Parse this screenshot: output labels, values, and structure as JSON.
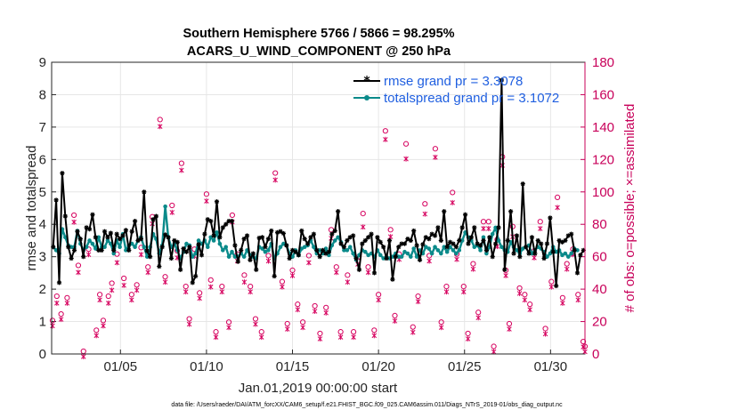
{
  "chart_data": {
    "type": "line",
    "title": "Southern Hemisphere 5766 / 5866 = 98.295%",
    "subtitle": "ACARS_U_WIND_COMPONENT @ 250 hPa",
    "xlabel": "Jan.01,2019 00:00:00 start",
    "ylabel": "rmse and totalspread",
    "ylabel_right": "# of obs: o=possible; ×=assimilated",
    "x_ticks": [
      "01/05",
      "01/10",
      "01/15",
      "01/20",
      "01/25",
      "01/30"
    ],
    "x_tick_days": [
      5,
      10,
      15,
      20,
      25,
      30
    ],
    "xlim": [
      1,
      32
    ],
    "ylim": [
      0,
      9
    ],
    "ylim_right": [
      0,
      180
    ],
    "y_ticks": [
      "0",
      "1",
      "2",
      "3",
      "4",
      "5",
      "6",
      "7",
      "8",
      "9"
    ],
    "y_ticks_right": [
      "0",
      "20",
      "40",
      "60",
      "80",
      "100",
      "120",
      "140",
      "160",
      "180"
    ],
    "grid": true,
    "legend_position": "top-right",
    "series": [
      {
        "name": "rmse grand pr = 3.3078",
        "color": "#000000",
        "marker": "star",
        "values": [
          3.3,
          4.75,
          2.2,
          5.58,
          4.25,
          3.3,
          2.95,
          3.2,
          3.78,
          3.55,
          3.0,
          3.9,
          3.85,
          4.3,
          3.6,
          3.2,
          3.2,
          3.78,
          3.6,
          3.73,
          3.2,
          3.7,
          3.55,
          3.65,
          3.82,
          3.2,
          3.78,
          4.1,
          3.5,
          3.55,
          5.0,
          3.18,
          3.0,
          4.15,
          4.25,
          2.7,
          3.3,
          3.68,
          3.6,
          2.95,
          3.5,
          3.45,
          2.6,
          3.25,
          3.15,
          3.3,
          2.2,
          2.4,
          3.38,
          3.05,
          3.7,
          4.15,
          4.1,
          3.65,
          4.7,
          3.6,
          3.9,
          4.0,
          4.1,
          4.1,
          3.35,
          2.85,
          3.2,
          3.55,
          3.65,
          2.9,
          3.1,
          2.6,
          3.58,
          3.6,
          3.3,
          3.55,
          3.8,
          2.4,
          3.75,
          3.78,
          3.72,
          3.35,
          2.95,
          3.2,
          3.15,
          3.05,
          3.8,
          3.55,
          3.4,
          3.6,
          3.7,
          3.2,
          3.0,
          3.2,
          3.1,
          3.15,
          3.7,
          3.8,
          4.4,
          3.4,
          3.3,
          3.5,
          3.6,
          3.65,
          2.95,
          2.6,
          3.4,
          3.5,
          3.6,
          3.7,
          2.5,
          3.6,
          3.45,
          3.3,
          2.95,
          3.5,
          2.3,
          3.0,
          3.3,
          3.4,
          3.4,
          3.55,
          3.5,
          3.8,
          3.35,
          2.9,
          3.38,
          3.6,
          3.55,
          3.7,
          3.65,
          3.9,
          3.5,
          4.4,
          3.3,
          3.45,
          3.4,
          3.3,
          3.5,
          3.9,
          4.3,
          3.4,
          3.6,
          3.9,
          3.4,
          3.35,
          3.5,
          3.2,
          3.6,
          3.0,
          3.4,
          3.9,
          8.45,
          2.6,
          3.5,
          4.4,
          3.1,
          3.65,
          3.0,
          5.25,
          3.3,
          3.1,
          3.6,
          3.1,
          3.5,
          3.4,
          2.95,
          3.4,
          4.2,
          3.15,
          2.1,
          3.5,
          3.45,
          3.5,
          3.65,
          3.7,
          3.2,
          2.5,
          3.05,
          3.2
        ]
      },
      {
        "name": "totalspread grand pr = 3.1072",
        "color": "#0a8a8a",
        "marker": "circle",
        "values": [
          3.3,
          3.2,
          3.1,
          3.85,
          3.6,
          3.35,
          3.3,
          3.3,
          3.8,
          3.4,
          3.2,
          3.3,
          3.5,
          3.4,
          3.25,
          3.6,
          3.3,
          3.3,
          3.5,
          3.4,
          3.1,
          3.5,
          3.3,
          3.7,
          3.2,
          3.35,
          3.4,
          3.3,
          3.5,
          3.6,
          3.3,
          3.0,
          3.3,
          3.7,
          3.55,
          3.1,
          3.35,
          4.55,
          3.6,
          3.3,
          3.4,
          3.2,
          2.95,
          3.15,
          3.4,
          3.35,
          3.0,
          3.1,
          3.5,
          3.4,
          3.5,
          3.3,
          3.6,
          3.5,
          3.75,
          3.4,
          3.2,
          3.3,
          3.0,
          3.15,
          3.0,
          3.0,
          3.1,
          3.0,
          3.2,
          3.05,
          3.0,
          2.95,
          3.3,
          3.25,
          3.15,
          3.2,
          3.4,
          2.95,
          3.1,
          3.3,
          3.4,
          3.35,
          3.1,
          3.0,
          3.2,
          3.05,
          3.25,
          3.3,
          3.35,
          3.5,
          3.3,
          3.1,
          3.2,
          3.1,
          3.25,
          3.05,
          3.35,
          3.5,
          3.6,
          3.45,
          3.2,
          3.2,
          3.3,
          3.1,
          2.9,
          3.05,
          3.2,
          3.15,
          3.05,
          3.1,
          3.0,
          3.2,
          3.05,
          2.95,
          3.0,
          2.95,
          3.0,
          3.1,
          3.0,
          3.0,
          3.15,
          3.1,
          3.0,
          3.25,
          3.0,
          3.2,
          3.1,
          3.3,
          3.25,
          3.1,
          3.3,
          3.2,
          3.1,
          3.3,
          3.15,
          3.3,
          3.2,
          3.1,
          3.2,
          3.5,
          3.75,
          3.6,
          3.5,
          3.3,
          3.35,
          3.2,
          3.6,
          3.1,
          3.3,
          3.7,
          3.9,
          3.5,
          3.3,
          3.2,
          3.15,
          3.45,
          3.3,
          3.2,
          3.1,
          3.25,
          3.3,
          3.35,
          3.1,
          3.2,
          3.3,
          3.25,
          3.15,
          3.0,
          3.1,
          3.3,
          3.15,
          3.2,
          3.05,
          3.1,
          3.0,
          3.1,
          3.25,
          3.2
        ]
      }
    ],
    "obs_possible": {
      "name": "possible",
      "color": "#d6005e",
      "marker": "o",
      "points": [
        [
          1.05,
          19
        ],
        [
          1.3,
          34
        ],
        [
          1.55,
          23
        ],
        [
          1.9,
          33
        ],
        [
          2.3,
          84
        ],
        [
          2.55,
          53
        ],
        [
          2.85,
          0
        ],
        [
          3.15,
          63
        ],
        [
          3.6,
          13
        ],
        [
          3.8,
          35
        ],
        [
          4.0,
          19
        ],
        [
          4.3,
          34
        ],
        [
          4.5,
          42
        ],
        [
          4.8,
          60
        ],
        [
          5.2,
          45
        ],
        [
          5.65,
          35
        ],
        [
          5.95,
          41
        ],
        [
          6.2,
          64
        ],
        [
          6.6,
          52
        ],
        [
          6.85,
          83
        ],
        [
          7.3,
          143
        ],
        [
          7.6,
          46
        ],
        [
          8.0,
          90
        ],
        [
          8.3,
          62
        ],
        [
          8.55,
          116
        ],
        [
          8.8,
          40
        ],
        [
          9.0,
          20
        ],
        [
          9.3,
          63
        ],
        [
          9.6,
          36
        ],
        [
          10.0,
          97
        ],
        [
          10.25,
          44
        ],
        [
          10.55,
          12
        ],
        [
          10.9,
          40
        ],
        [
          11.3,
          18
        ],
        [
          11.5,
          84
        ],
        [
          11.8,
          60
        ],
        [
          12.2,
          47
        ],
        [
          12.55,
          40
        ],
        [
          12.85,
          20
        ],
        [
          13.2,
          12
        ],
        [
          13.6,
          59
        ],
        [
          14.0,
          110
        ],
        [
          14.4,
          43
        ],
        [
          14.7,
          17
        ],
        [
          15.0,
          50
        ],
        [
          15.3,
          29
        ],
        [
          15.6,
          18
        ],
        [
          15.95,
          59
        ],
        [
          16.3,
          28
        ],
        [
          16.6,
          11
        ],
        [
          16.95,
          27
        ],
        [
          17.25,
          75
        ],
        [
          17.55,
          52
        ],
        [
          17.8,
          12
        ],
        [
          18.2,
          47
        ],
        [
          18.55,
          12
        ],
        [
          18.8,
          58
        ],
        [
          19.1,
          85
        ],
        [
          19.4,
          52
        ],
        [
          19.75,
          13
        ],
        [
          20.0,
          35
        ],
        [
          20.4,
          136
        ],
        [
          20.7,
          75
        ],
        [
          20.95,
          22
        ],
        [
          21.2,
          60
        ],
        [
          21.6,
          128
        ],
        [
          22.0,
          15
        ],
        [
          22.3,
          34
        ],
        [
          22.7,
          91
        ],
        [
          22.95,
          59
        ],
        [
          23.3,
          125
        ],
        [
          23.65,
          18
        ],
        [
          23.95,
          40
        ],
        [
          24.3,
          98
        ],
        [
          24.55,
          60
        ],
        [
          24.95,
          40
        ],
        [
          25.2,
          11
        ],
        [
          25.5,
          54
        ],
        [
          25.8,
          24
        ],
        [
          26.1,
          80
        ],
        [
          26.4,
          80
        ],
        [
          26.7,
          3
        ],
        [
          26.9,
          69
        ],
        [
          27.2,
          120
        ],
        [
          27.4,
          50
        ],
        [
          27.6,
          17
        ],
        [
          27.8,
          77
        ],
        [
          28.2,
          39
        ],
        [
          28.5,
          35
        ],
        [
          28.8,
          29
        ],
        [
          29.05,
          62
        ],
        [
          29.4,
          80
        ],
        [
          29.7,
          14
        ],
        [
          30.05,
          43
        ],
        [
          30.4,
          95
        ],
        [
          30.7,
          33
        ],
        [
          30.95,
          54
        ],
        [
          31.3,
          63
        ],
        [
          31.6,
          35
        ],
        [
          31.9,
          6
        ],
        [
          32.0,
          3
        ]
      ]
    },
    "obs_assimilated": {
      "name": "assimilated",
      "color": "#d6005e",
      "marker": "x",
      "points": [
        [
          1.05,
          19
        ],
        [
          1.3,
          33
        ],
        [
          1.55,
          23
        ],
        [
          1.9,
          33
        ],
        [
          2.3,
          83
        ],
        [
          2.55,
          52
        ],
        [
          2.85,
          0
        ],
        [
          3.15,
          63
        ],
        [
          3.6,
          13
        ],
        [
          3.8,
          35
        ],
        [
          4.0,
          19
        ],
        [
          4.3,
          33
        ],
        [
          4.5,
          41
        ],
        [
          4.8,
          58
        ],
        [
          5.2,
          44
        ],
        [
          5.65,
          35
        ],
        [
          5.95,
          41
        ],
        [
          6.2,
          63
        ],
        [
          6.6,
          52
        ],
        [
          6.85,
          82
        ],
        [
          7.3,
          142
        ],
        [
          7.6,
          46
        ],
        [
          8.0,
          89
        ],
        [
          8.3,
          61
        ],
        [
          8.55,
          115
        ],
        [
          8.8,
          40
        ],
        [
          9.0,
          20
        ],
        [
          9.3,
          62
        ],
        [
          9.6,
          36
        ],
        [
          10.0,
          96
        ],
        [
          10.25,
          43
        ],
        [
          10.55,
          12
        ],
        [
          10.9,
          40
        ],
        [
          11.3,
          18
        ],
        [
          11.5,
          83
        ],
        [
          11.8,
          59
        ],
        [
          12.2,
          46
        ],
        [
          12.55,
          40
        ],
        [
          12.85,
          20
        ],
        [
          13.2,
          12
        ],
        [
          13.6,
          59
        ],
        [
          14.0,
          109
        ],
        [
          14.4,
          43
        ],
        [
          14.7,
          17
        ],
        [
          15.0,
          50
        ],
        [
          15.3,
          29
        ],
        [
          15.6,
          18
        ],
        [
          15.95,
          58
        ],
        [
          16.3,
          28
        ],
        [
          16.6,
          11
        ],
        [
          16.95,
          27
        ],
        [
          17.25,
          73
        ],
        [
          17.55,
          52
        ],
        [
          17.8,
          12
        ],
        [
          18.2,
          46
        ],
        [
          18.55,
          12
        ],
        [
          18.8,
          57
        ],
        [
          19.1,
          80
        ],
        [
          19.4,
          52
        ],
        [
          19.75,
          13
        ],
        [
          20.0,
          35
        ],
        [
          20.4,
          134
        ],
        [
          20.7,
          74
        ],
        [
          20.95,
          22
        ],
        [
          21.2,
          60
        ],
        [
          21.6,
          122
        ],
        [
          22.0,
          15
        ],
        [
          22.3,
          34
        ],
        [
          22.7,
          88
        ],
        [
          22.95,
          59
        ],
        [
          23.3,
          123
        ],
        [
          23.65,
          18
        ],
        [
          23.95,
          40
        ],
        [
          24.3,
          95
        ],
        [
          24.55,
          60
        ],
        [
          24.95,
          40
        ],
        [
          25.2,
          11
        ],
        [
          25.5,
          54
        ],
        [
          25.8,
          24
        ],
        [
          26.1,
          79
        ],
        [
          26.4,
          79
        ],
        [
          26.7,
          3
        ],
        [
          26.9,
          68
        ],
        [
          27.2,
          118
        ],
        [
          27.4,
          50
        ],
        [
          27.6,
          17
        ],
        [
          27.8,
          74
        ],
        [
          28.2,
          39
        ],
        [
          28.5,
          35
        ],
        [
          28.8,
          29
        ],
        [
          29.05,
          61
        ],
        [
          29.4,
          79
        ],
        [
          29.7,
          14
        ],
        [
          30.05,
          43
        ],
        [
          30.4,
          92
        ],
        [
          30.7,
          33
        ],
        [
          30.95,
          54
        ],
        [
          31.3,
          63
        ],
        [
          31.6,
          35
        ],
        [
          31.9,
          6
        ],
        [
          32.0,
          3
        ]
      ]
    }
  },
  "footer": "data file: /Users/raeder/DAI/ATM_forcXX/CAM6_setup/f.e21.FHIST_BGC.f09_025.CAM6assim.011/Diags_NTrS_2019-01/obs_diag_output.nc"
}
